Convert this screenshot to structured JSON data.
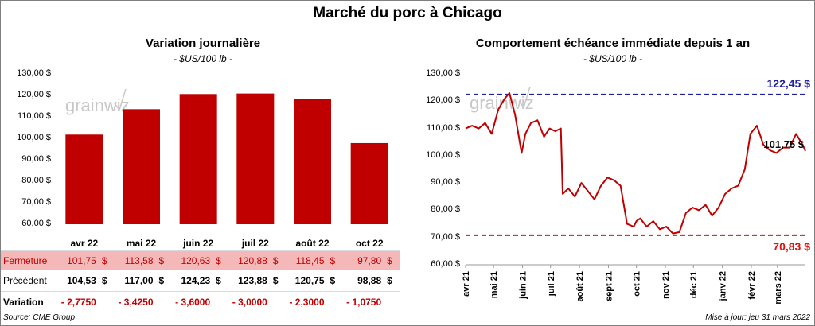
{
  "title": "Marché du porc à Chicago",
  "left": {
    "title": "Variation  journalière",
    "subtitle": "- $US/100 lb -",
    "row_labels": {
      "close": "Fermeture",
      "prev": "Précédent",
      "var": "Variation"
    },
    "unit": "$",
    "close": [
      "101,75",
      "113,58",
      "120,63",
      "120,88",
      "118,45",
      "97,80"
    ],
    "prev": [
      "104,53",
      "117,00",
      "124,23",
      "123,88",
      "120,75",
      "98,88"
    ],
    "var": [
      "- 2,7750",
      "- 3,4250",
      "- 3,6000",
      "- 3,0000",
      "- 2,3000",
      "- 1,0750"
    ]
  },
  "right": {
    "title": "Comportement  échéance immédiate depuis 1 an",
    "subtitle": "- $US/100 lb -",
    "high_label": "122,45 $",
    "low_label": "70,83 $",
    "last_label": "101,75 $"
  },
  "footer": {
    "source": "Source: CME Group",
    "updated": "Mise à jour: jeu 31 mars 2022"
  },
  "watermark": "grainwiz",
  "colors": {
    "bar": "#c00000",
    "line": "#c00000",
    "high": "#1f1f9f",
    "low": "#e01010",
    "highlight_row": "#f4b8b8"
  },
  "chart_data": [
    {
      "type": "bar",
      "title": "Variation  journalière",
      "categories": [
        "avr 22",
        "mai 22",
        "juin 22",
        "juil 22",
        "août 22",
        "oct 22"
      ],
      "values": [
        101.75,
        113.58,
        120.63,
        120.88,
        118.45,
        97.8
      ],
      "ylim": [
        60,
        130
      ],
      "yticks": [
        "60,00 $",
        "70,00 $",
        "80,00 $",
        "90,00 $",
        "100,00 $",
        "110,00 $",
        "120,00 $",
        "130,00 $"
      ],
      "ylabel": "",
      "xlabel": ""
    },
    {
      "type": "line",
      "title": "Comportement  échéance immédiate depuis 1 an",
      "xticks": [
        "avr 21",
        "mai 21",
        "juin 21",
        "juil 21",
        "août 21",
        "sept 21",
        "oct 21",
        "nov 21",
        "déc 21",
        "janv 22",
        "févr 22",
        "mars 22"
      ],
      "ylim": [
        60,
        130
      ],
      "yticks": [
        "60,00 $",
        "70,00 $",
        "80,00 $",
        "90,00 $",
        "100,00 $",
        "110,00 $",
        "120,00 $",
        "130,00 $"
      ],
      "high": 122.45,
      "low": 70.83,
      "last": 101.75,
      "series": [
        {
          "x": [
            "2021-04-01",
            "2021-04-08",
            "2021-04-15",
            "2021-04-22",
            "2021-04-29",
            "2021-05-06",
            "2021-05-13",
            "2021-05-18",
            "2021-05-24",
            "2021-05-31",
            "2021-06-04",
            "2021-06-10",
            "2021-06-17",
            "2021-06-24",
            "2021-06-30",
            "2021-07-06",
            "2021-07-12",
            "2021-07-14",
            "2021-07-20",
            "2021-07-27",
            "2021-08-03",
            "2021-08-10",
            "2021-08-17",
            "2021-08-24",
            "2021-08-31",
            "2021-09-07",
            "2021-09-14",
            "2021-09-21",
            "2021-09-28",
            "2021-10-01",
            "2021-10-05",
            "2021-10-12",
            "2021-10-19",
            "2021-10-26",
            "2021-11-02",
            "2021-11-09",
            "2021-11-16",
            "2021-11-23",
            "2021-11-30",
            "2021-12-07",
            "2021-12-14",
            "2021-12-21",
            "2021-12-28",
            "2022-01-04",
            "2022-01-11",
            "2022-01-18",
            "2022-01-25",
            "2022-01-31",
            "2022-02-07",
            "2022-02-14",
            "2022-02-21",
            "2022-02-28",
            "2022-03-07",
            "2022-03-14",
            "2022-03-21",
            "2022-03-28",
            "2022-03-31"
          ],
          "values": [
            110,
            111,
            110,
            112,
            108,
            117,
            121,
            123,
            115,
            101,
            108,
            112,
            113,
            107,
            110,
            109,
            110,
            86,
            88,
            85,
            90,
            87,
            84,
            89,
            92,
            91,
            89,
            75,
            74,
            76,
            77,
            74,
            76,
            73,
            74,
            71.5,
            72,
            79,
            81,
            80,
            82,
            78,
            81,
            86,
            88,
            89,
            95,
            108,
            111,
            104,
            102,
            101,
            103,
            103,
            108,
            104,
            101.75
          ]
        }
      ]
    }
  ]
}
